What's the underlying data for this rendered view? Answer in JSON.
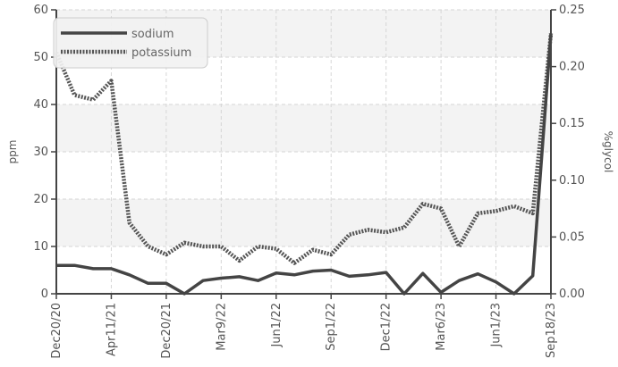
{
  "chart_data": {
    "type": "line",
    "x_ticks": [
      "Dec20/20",
      "Apr11/21",
      "Dec20/21",
      "Mar9/22",
      "Jun1/22",
      "Sep1/22",
      "Dec1/22",
      "Mar6/23",
      "Jun1/23",
      "Sep18/23"
    ],
    "y_left": {
      "label": "ppm",
      "min": 0,
      "max": 60,
      "ticks": [
        "0",
        "10",
        "20",
        "30",
        "40",
        "50",
        "60"
      ]
    },
    "y_right": {
      "label": "%glycol",
      "min": 0,
      "max": 0.25,
      "ticks": [
        "0.00",
        "0.05",
        "0.10",
        "0.15",
        "0.20",
        "0.25"
      ]
    },
    "grid": true,
    "legend_position": "top-left",
    "series": [
      {
        "name": "sodium",
        "color": "#444444",
        "style": "solid",
        "x": [
          0,
          0.33,
          0.67,
          1,
          1.33,
          1.67,
          2,
          2.33,
          2.67,
          3,
          3.33,
          3.67,
          4,
          4.33,
          4.67,
          5,
          5.33,
          5.67,
          6,
          6.33,
          6.67,
          7,
          7.33,
          7.67,
          8,
          8.33,
          8.67,
          9
        ],
        "values": [
          6,
          6,
          5.3,
          5.3,
          4,
          2.2,
          2.2,
          0,
          2.8,
          3.3,
          3.6,
          2.8,
          4.4,
          4,
          4.8,
          5,
          3.7,
          4,
          4.5,
          0,
          4.3,
          0.3,
          2.8,
          4.2,
          2.5,
          0,
          3.8,
          55
        ]
      },
      {
        "name": "potassium",
        "color": "#555555",
        "style": "dotted",
        "x": [
          0,
          0.33,
          0.67,
          1,
          1.33,
          1.67,
          2,
          2.33,
          2.67,
          3,
          3.33,
          3.67,
          4,
          4.33,
          4.67,
          5,
          5.33,
          5.67,
          6,
          6.33,
          6.67,
          7,
          7.33,
          7.67,
          8,
          8.33,
          8.67,
          9
        ],
        "values": [
          51,
          42,
          41,
          45,
          15,
          10,
          8.3,
          10.8,
          10,
          10,
          7,
          10,
          9.5,
          6.5,
          9.3,
          8.3,
          12.5,
          13.5,
          13,
          14,
          19,
          18,
          10,
          17,
          17.5,
          18.5,
          17,
          55
        ]
      }
    ]
  }
}
